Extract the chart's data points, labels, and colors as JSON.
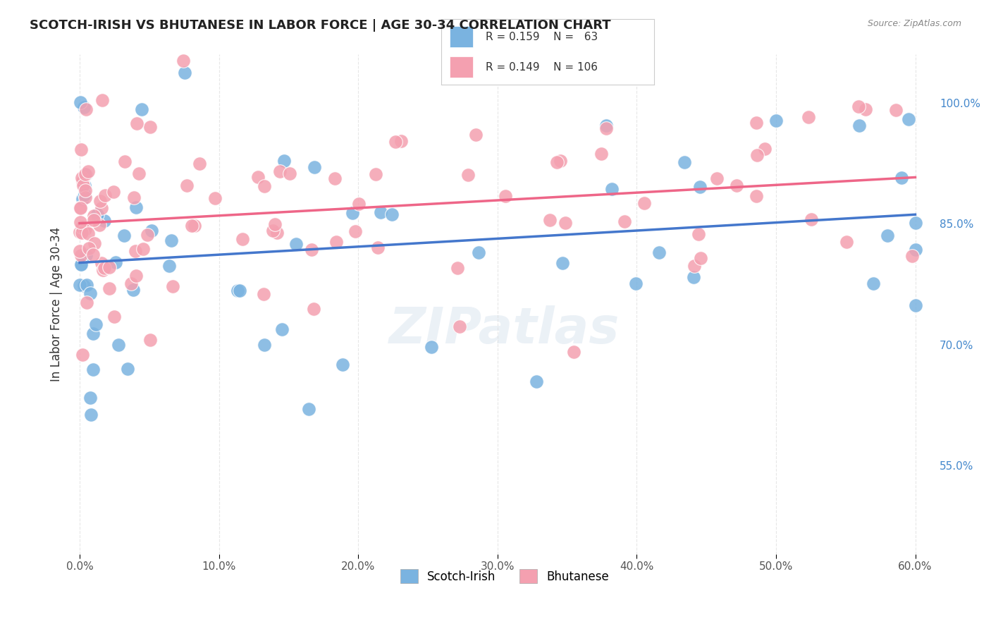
{
  "title": "SCOTCH-IRISH VS BHUTANESE IN LABOR FORCE | AGE 30-34 CORRELATION CHART",
  "source": "Source: ZipAtlas.com",
  "ylabel": "In Labor Force | Age 30-34",
  "legend_labels": [
    "Scotch-Irish",
    "Bhutanese"
  ],
  "legend_R": [
    0.159,
    0.149
  ],
  "legend_N": [
    63,
    106
  ],
  "scotch_irish_color": "#7ab3e0",
  "bhutanese_color": "#f4a0b0",
  "scotch_irish_line_color": "#4477cc",
  "bhutanese_line_color": "#ee6688",
  "background_color": "#ffffff",
  "grid_color": "#dddddd",
  "x_min": -0.005,
  "x_max": 0.615,
  "y_min": 0.44,
  "y_max": 1.06,
  "x_ticks": [
    0.0,
    0.1,
    0.2,
    0.3,
    0.4,
    0.5,
    0.6
  ],
  "x_tick_labels": [
    "0.0%",
    "10.0%",
    "20.0%",
    "30.0%",
    "40.0%",
    "50.0%",
    "60.0%"
  ],
  "y_ticks_right": [
    0.55,
    0.7,
    0.85,
    1.0
  ],
  "y_tick_labels_right": [
    "55.0%",
    "70.0%",
    "85.0%",
    "100.0%"
  ]
}
